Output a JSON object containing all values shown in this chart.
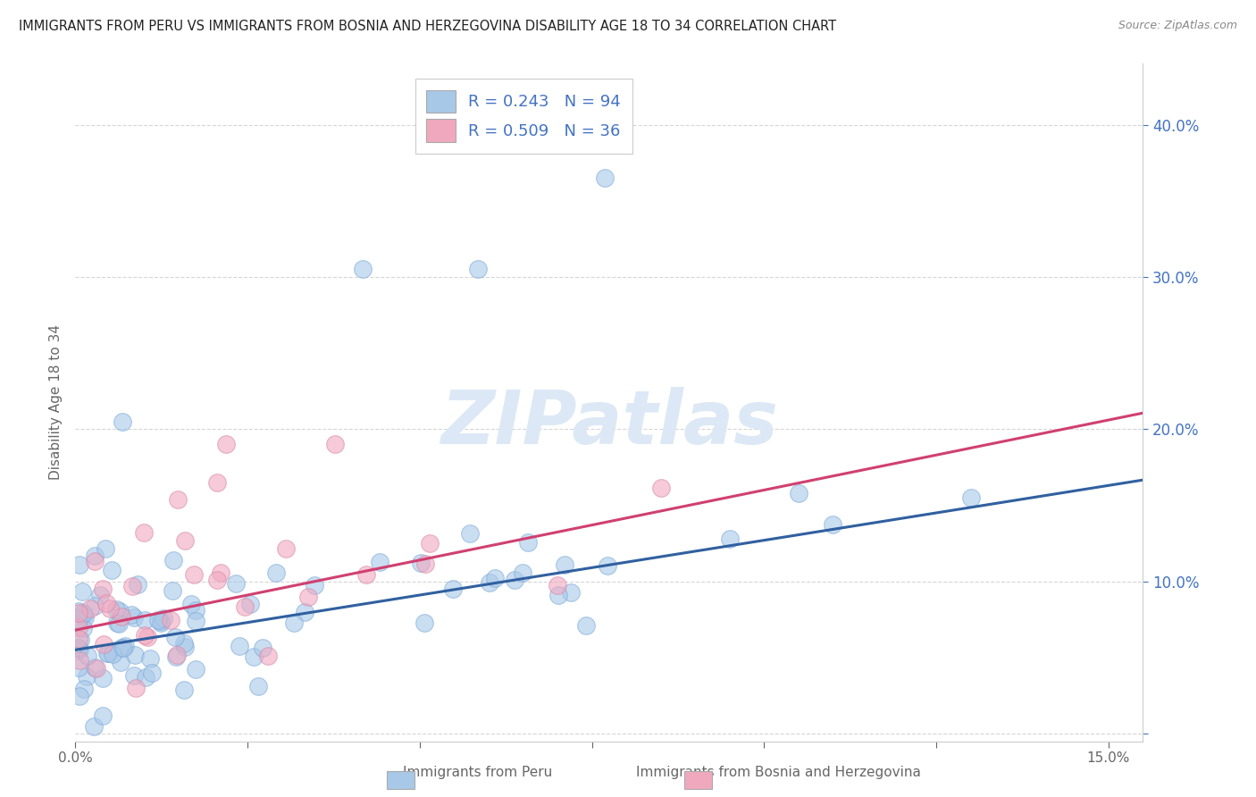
{
  "title": "IMMIGRANTS FROM PERU VS IMMIGRANTS FROM BOSNIA AND HERZEGOVINA DISABILITY AGE 18 TO 34 CORRELATION CHART",
  "source": "Source: ZipAtlas.com",
  "ylabel": "Disability Age 18 to 34",
  "xlim": [
    0.0,
    0.155
  ],
  "ylim": [
    -0.005,
    0.44
  ],
  "yticks": [
    0.0,
    0.1,
    0.2,
    0.3,
    0.4
  ],
  "xtick_positions": [
    0.0,
    0.025,
    0.05,
    0.075,
    0.1,
    0.125,
    0.15
  ],
  "legend_text1": "R = 0.243   N = 94",
  "legend_text2": "R = 0.509   N = 36",
  "color_peru": "#a8c8e8",
  "color_bosnia": "#f0a8be",
  "color_line_peru": "#3060a0",
  "color_line_bosnia": "#d04070",
  "watermark_text": "ZIPatlas",
  "watermark_color": "#dce8f5",
  "background_color": "#ffffff",
  "grid_color": "#cccccc",
  "title_color": "#222222",
  "source_color": "#888888",
  "axis_label_color": "#666666",
  "tick_color_y": "#4472c4",
  "tick_color_x": "#666666",
  "regression_peru_slope": 0.72,
  "regression_peru_intercept": 0.055,
  "regression_bosnia_slope": 0.92,
  "regression_bosnia_intercept": 0.068,
  "n_peru": 94,
  "n_bosnia": 36
}
